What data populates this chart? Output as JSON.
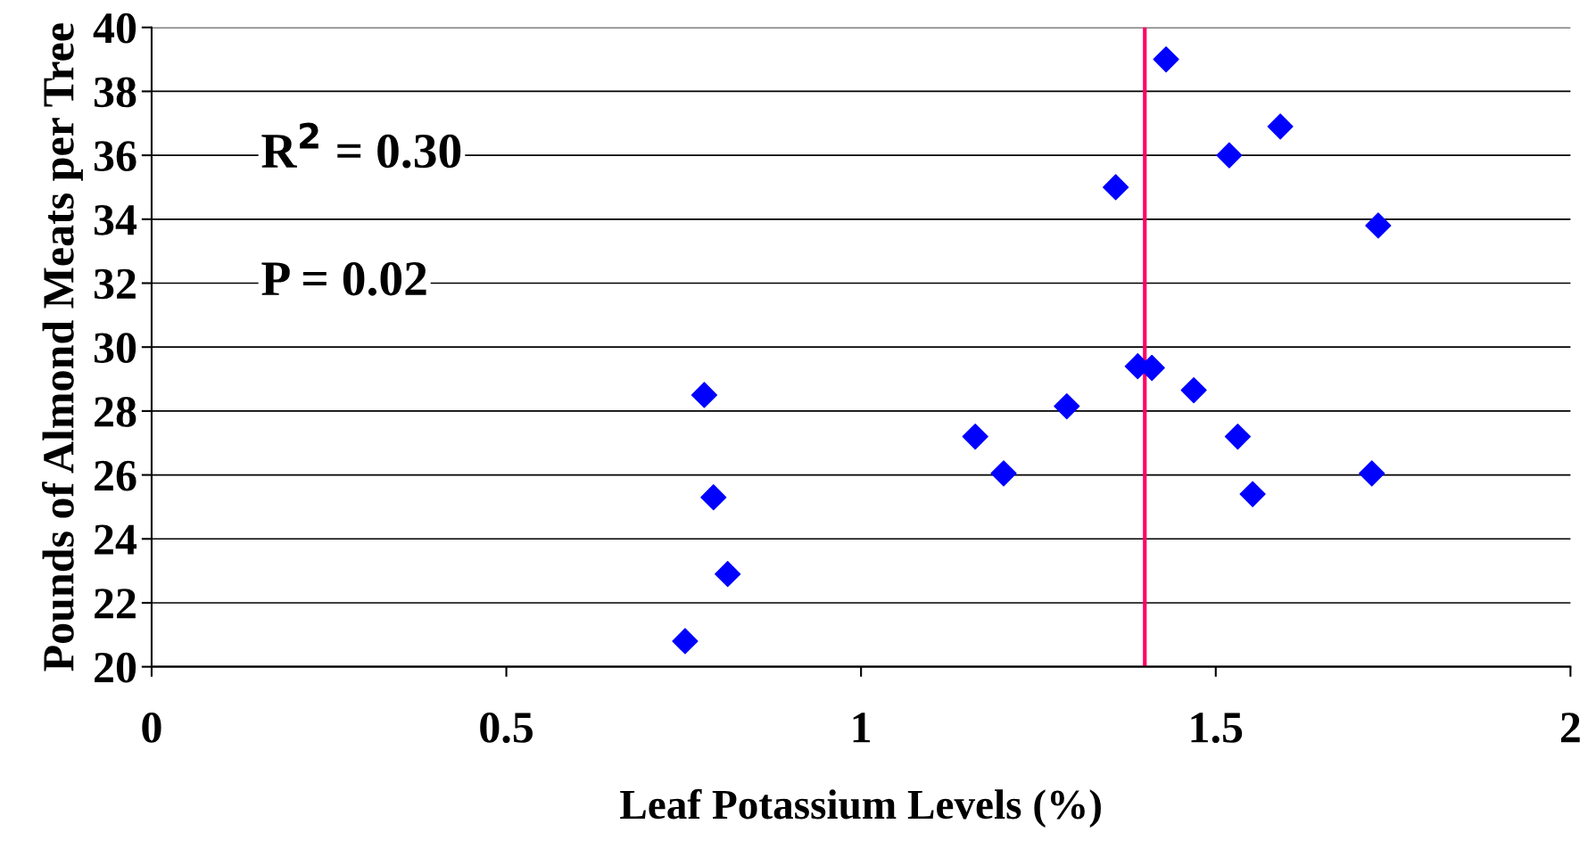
{
  "chart_data": {
    "type": "scatter",
    "xlabel": "Leaf Potassium Levels (%)",
    "ylabel": "Pounds of Almond Meats per Tree",
    "x": [
      0.752,
      0.779,
      0.792,
      0.812,
      1.161,
      1.201,
      1.29,
      1.359,
      1.39,
      1.41,
      1.43,
      1.469,
      1.519,
      1.531,
      1.552,
      1.591,
      1.72,
      1.729
    ],
    "series": [
      {
        "color": "#0000ff",
        "values": [
          20.8,
          28.5,
          25.3,
          22.9,
          27.2,
          26.05,
          28.15,
          35.0,
          29.4,
          29.35,
          39.0,
          28.65,
          36.0,
          27.2,
          25.4,
          36.9,
          26.05,
          33.8
        ]
      }
    ],
    "marker": "diamond",
    "xlim": [
      0,
      2
    ],
    "xticks": [
      0,
      0.5,
      1,
      1.5,
      2
    ],
    "ylim": [
      20,
      40
    ],
    "yticks": [
      20,
      22,
      24,
      26,
      28,
      30,
      32,
      34,
      36,
      38,
      40
    ],
    "grid": "y",
    "legend": false,
    "ref_lines": [
      {
        "axis": "x",
        "value": 1.4,
        "color": "#ff0066"
      }
    ],
    "annotations": [
      "R$^{2}$ = 0.30",
      "P = 0.02"
    ]
  }
}
